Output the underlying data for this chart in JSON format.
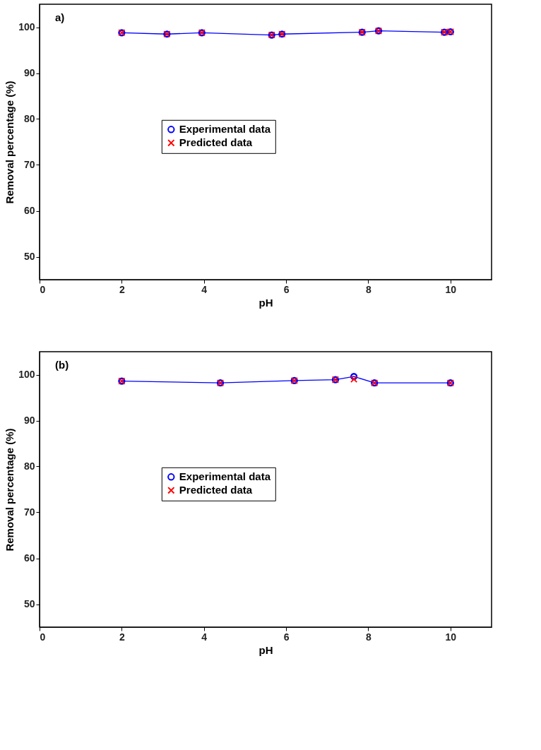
{
  "chart_data": [
    {
      "type": "line",
      "title": "a)",
      "xlabel": "pH",
      "ylabel": "Removal percentage (%)",
      "xlim": [
        0,
        11
      ],
      "ylim": [
        45,
        105
      ],
      "xticks": [
        0,
        2,
        4,
        6,
        8,
        10
      ],
      "yticks": [
        50,
        60,
        70,
        80,
        90,
        100
      ],
      "grid": false,
      "legend": "center",
      "series": [
        {
          "name": "Experimental data",
          "marker": "circle",
          "color": "#0000ff",
          "x": [
            2,
            3.1,
            3.95,
            5.65,
            5.9,
            7.85,
            8.25,
            9.85,
            10.0
          ],
          "values": [
            98.8,
            98.5,
            98.8,
            98.3,
            98.5,
            98.9,
            99.2,
            98.9,
            99.0
          ]
        },
        {
          "name": "Predicted data",
          "type": "scatter",
          "marker": "cross",
          "color": "#ff0000",
          "x": [
            2,
            3.1,
            3.95,
            5.65,
            5.9,
            7.85,
            8.25,
            9.85,
            10.0
          ],
          "values": [
            98.8,
            98.5,
            98.8,
            98.3,
            98.5,
            98.9,
            99.2,
            98.9,
            99.0
          ]
        }
      ]
    },
    {
      "type": "line",
      "title": "(b)",
      "xlabel": "pH",
      "ylabel": "Removal percentage (%)",
      "xlim": [
        0,
        11
      ],
      "ylim": [
        45,
        105
      ],
      "xticks": [
        0,
        2,
        4,
        6,
        8,
        10
      ],
      "yticks": [
        50,
        60,
        70,
        80,
        90,
        100
      ],
      "grid": false,
      "legend": "center",
      "series": [
        {
          "name": "Experimental data",
          "marker": "circle",
          "color": "#0000ff",
          "x": [
            2,
            4.4,
            6.2,
            7.2,
            7.65,
            8.15,
            10
          ],
          "values": [
            98.6,
            98.2,
            98.7,
            98.9,
            99.6,
            98.2,
            98.2
          ]
        },
        {
          "name": "Predicted data",
          "type": "scatter",
          "marker": "cross",
          "color": "#ff0000",
          "x": [
            2,
            4.4,
            6.2,
            7.2,
            7.65,
            8.15,
            10
          ],
          "values": [
            98.6,
            98.2,
            98.7,
            98.9,
            99.0,
            98.2,
            98.2
          ]
        }
      ]
    }
  ]
}
